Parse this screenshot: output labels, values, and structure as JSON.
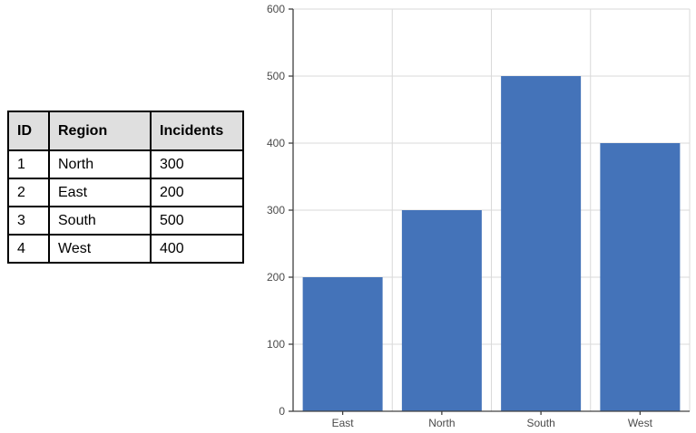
{
  "table": {
    "headers": [
      "ID",
      "Region",
      "Incidents"
    ],
    "rows": [
      [
        "1",
        "North",
        "300"
      ],
      [
        "2",
        "East",
        "200"
      ],
      [
        "3",
        "South",
        "500"
      ],
      [
        "4",
        "West",
        "400"
      ]
    ],
    "header_bg": "#dfdfdf",
    "border_color": "#000000"
  },
  "chart_data": {
    "type": "bar",
    "categories": [
      "East",
      "North",
      "South",
      "West"
    ],
    "values": [
      200,
      300,
      500,
      400
    ],
    "title": "",
    "xlabel": "",
    "ylabel": "",
    "ylim": [
      0,
      600
    ],
    "yticks": [
      0,
      100,
      200,
      300,
      400,
      500,
      600
    ],
    "grid": true,
    "legend": false,
    "bar_color": "#4473b9",
    "gridline_color": "#d9d9d9",
    "axis_color": "#404040",
    "tick_label_color": "#4a4a4a"
  }
}
